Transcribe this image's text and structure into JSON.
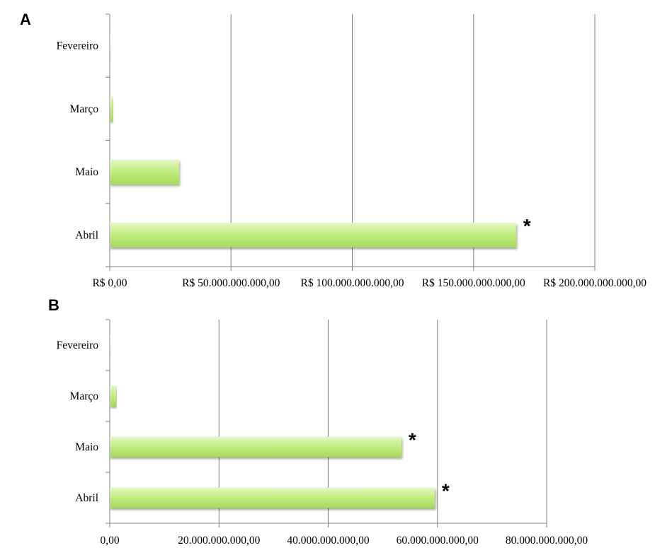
{
  "chart_data": [
    {
      "panel": "A",
      "type": "bar",
      "orientation": "horizontal",
      "categories": [
        "Fevereiro",
        "Março",
        "Maio",
        "Abril"
      ],
      "values": [
        100000000,
        1300000000,
        28500000000,
        167500000000
      ],
      "significant": [
        false,
        false,
        false,
        true
      ],
      "xlim": [
        0,
        200000000000
      ],
      "xticks": [
        0,
        50000000000,
        100000000000,
        150000000000,
        200000000000
      ],
      "xtick_labels": [
        "R$ 0,00",
        "R$ 50.000.000.000,00",
        "R$ 100.000.000.000,00",
        "R$ 150.000.000.000,00",
        "R$ 200.000.000.000,00"
      ],
      "significance_mark": "*",
      "grid": true,
      "bar_color": "#c2ee80"
    },
    {
      "panel": "B",
      "type": "bar",
      "orientation": "horizontal",
      "categories": [
        "Fevereiro",
        "Março",
        "Maio",
        "Abril"
      ],
      "values": [
        50000000,
        1200000000,
        53400000000,
        59500000000
      ],
      "significant": [
        false,
        false,
        true,
        true
      ],
      "xlim": [
        0,
        80000000000
      ],
      "xticks": [
        0,
        20000000000,
        40000000000,
        60000000000,
        80000000000
      ],
      "xtick_labels": [
        "0,00",
        "20.000.000.000,00",
        "40.000.000.000,00",
        "60.000.000.000,00",
        "80.000.000.000,00"
      ],
      "significance_mark": "*",
      "grid": true,
      "bar_color": "#c2ee80"
    }
  ]
}
